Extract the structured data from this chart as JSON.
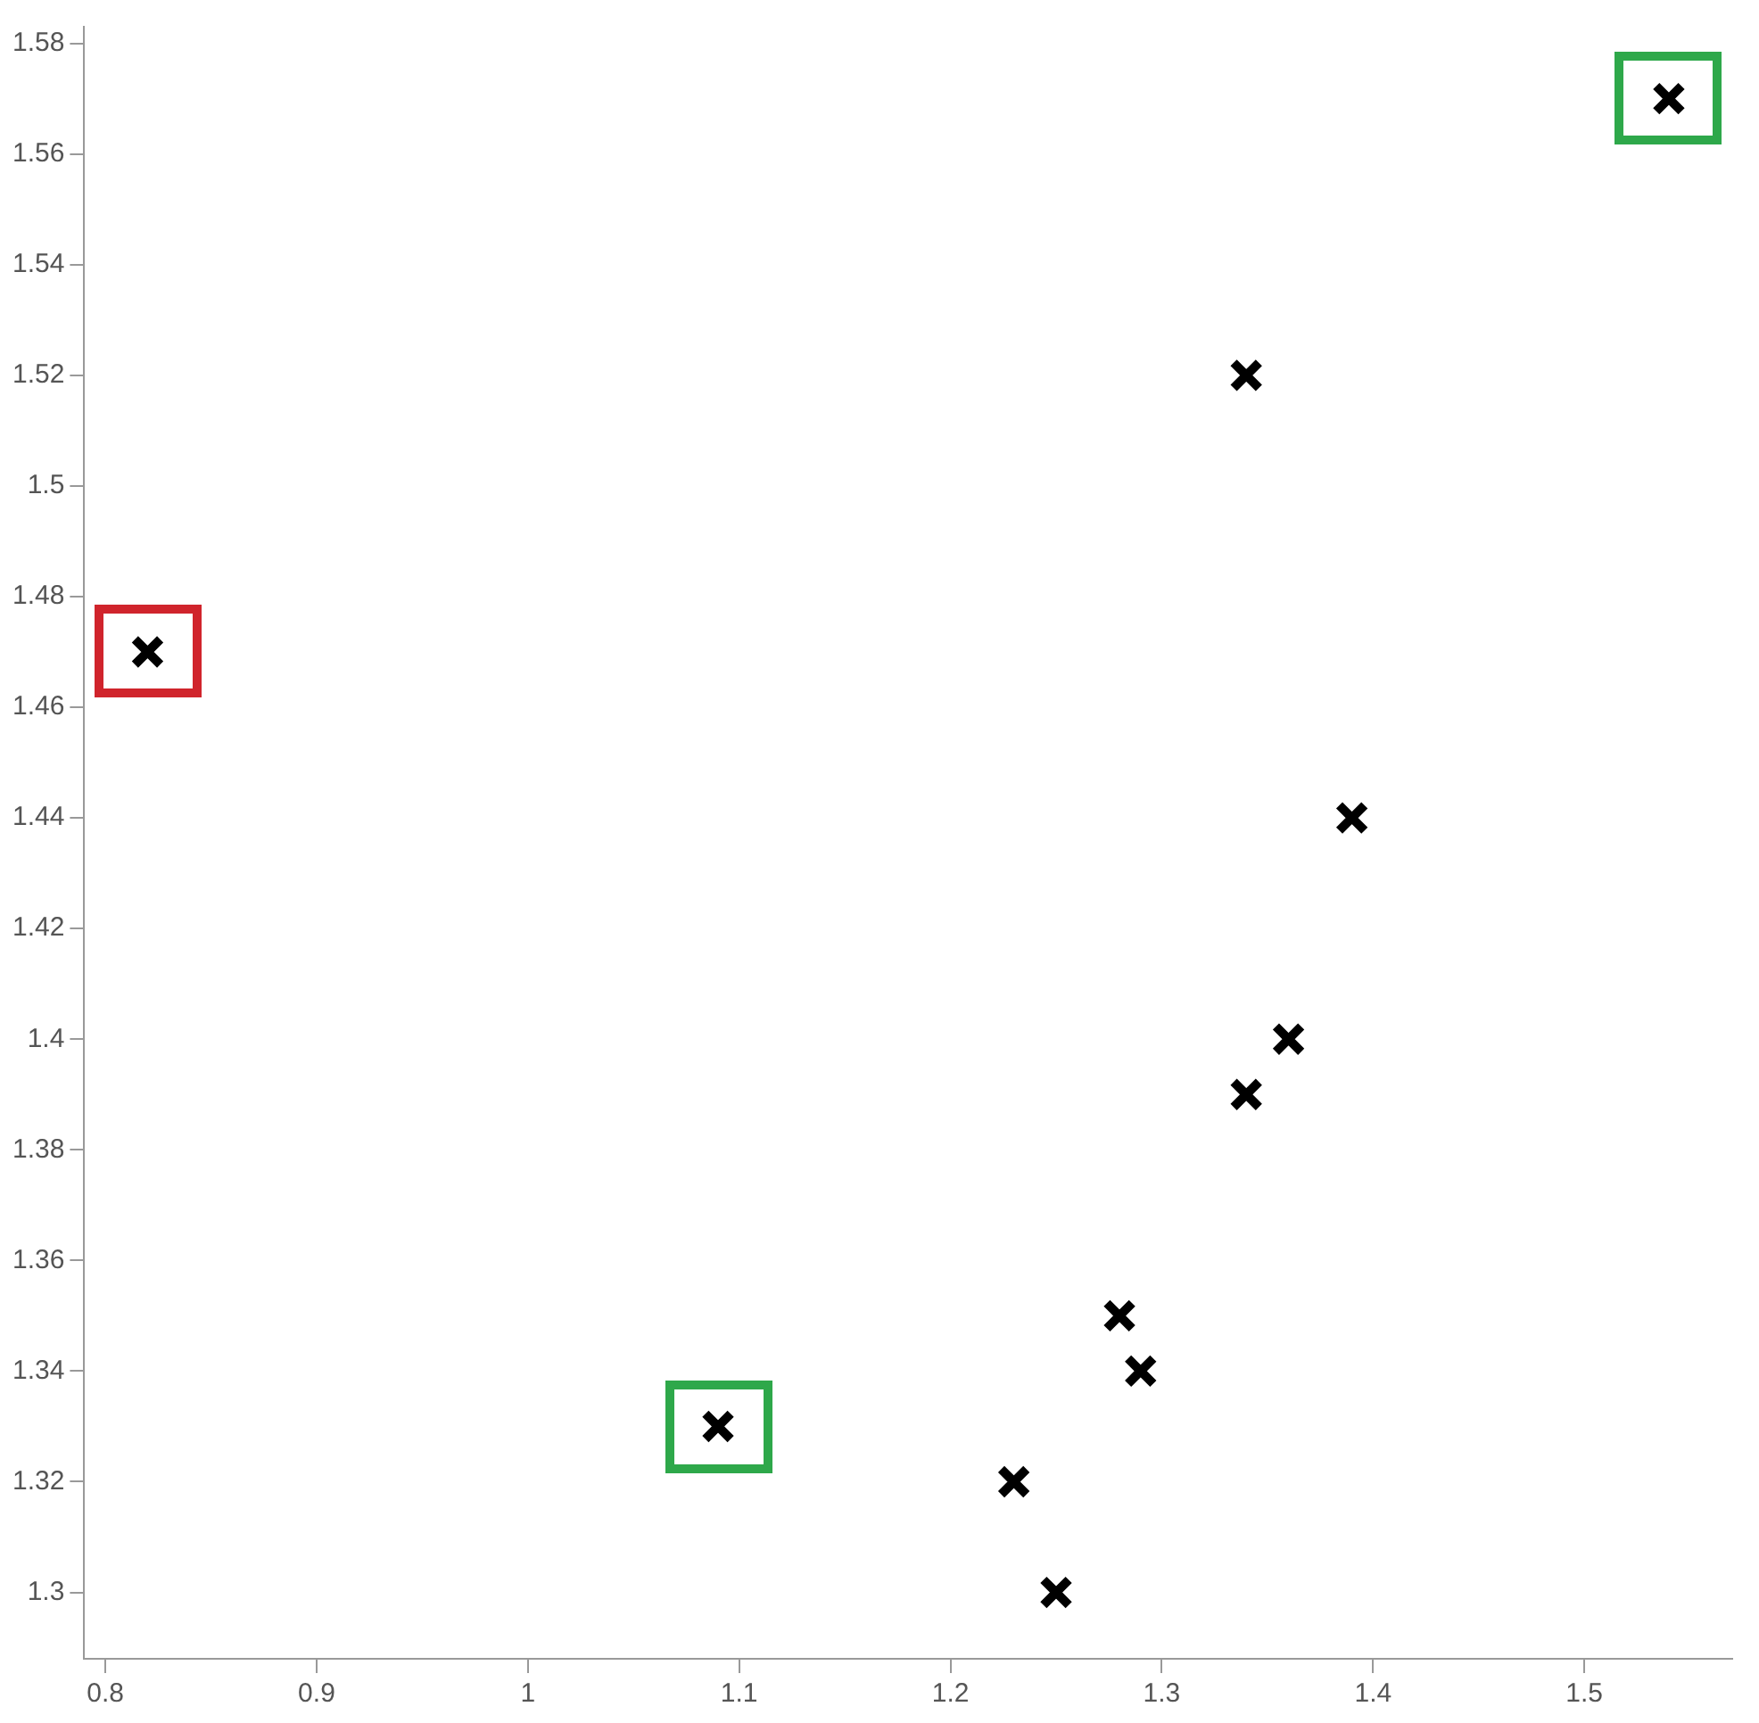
{
  "chart_data": {
    "type": "scatter",
    "marker": "cross",
    "grid": false,
    "legend": false,
    "x": [
      0.82,
      1.09,
      1.54,
      1.34,
      1.39,
      1.36,
      1.34,
      1.28,
      1.29,
      1.23,
      1.25
    ],
    "values": [
      1.47,
      1.33,
      1.57,
      1.52,
      1.44,
      1.4,
      1.39,
      1.35,
      1.34,
      1.32,
      1.3
    ],
    "color": "#000000",
    "xlim": [
      0.79,
      1.57
    ],
    "xticks": [
      {
        "value": 0.8,
        "label": "0.8"
      },
      {
        "value": 0.9,
        "label": "0.9"
      },
      1,
      {
        "value": 1.1,
        "label": "1.1"
      },
      {
        "value": 1.2,
        "label": "1.2"
      },
      {
        "value": 1.3,
        "label": "1.3"
      },
      {
        "value": 1.4,
        "label": "1.4"
      },
      {
        "value": 1.5,
        "label": "1.5"
      }
    ],
    "ylim": [
      1.288,
      1.583
    ],
    "yticks": [
      {
        "value": 1.3,
        "label": "1.3"
      },
      1.32,
      1.34,
      1.36,
      1.38,
      {
        "value": 1.4,
        "label": "1.4"
      },
      1.42,
      1.44,
      1.46,
      1.48,
      {
        "value": 1.5,
        "label": "1.5"
      },
      1.52,
      1.54,
      1.56,
      1.58
    ]
  }
}
